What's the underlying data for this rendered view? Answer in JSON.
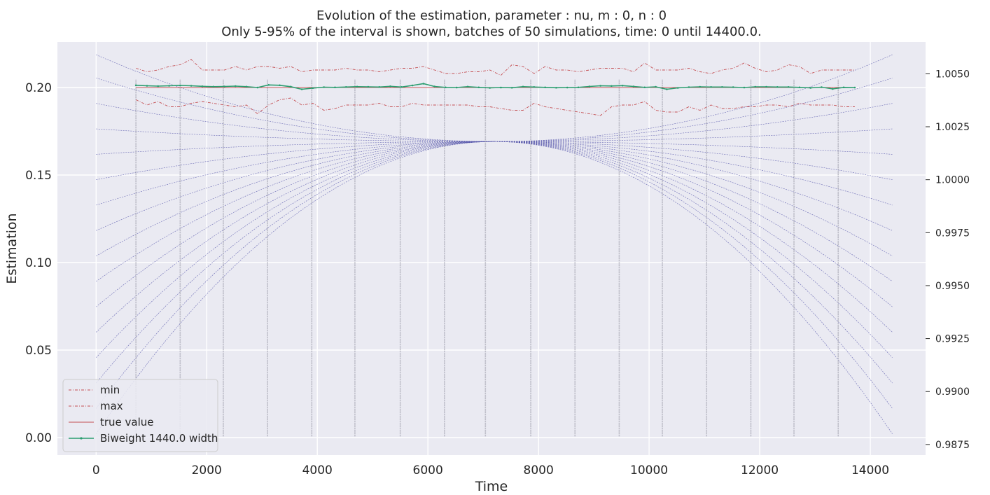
{
  "chart_data": {
    "type": "line",
    "title": "Evolution of the estimation, parameter : nu, m : 0, n : 0",
    "subtitle": "Only 5-95% of the interval is shown, batches of 50 simulations, time: 0 until 14400.0.",
    "xlabel": "Time",
    "ylabel": "Estimation",
    "xlim": [
      -700,
      15000
    ],
    "ylim": [
      -0.01,
      0.226
    ],
    "y2lim": [
      0.987,
      1.0065
    ],
    "xticks": [
      0,
      2000,
      4000,
      6000,
      8000,
      10000,
      12000,
      14000
    ],
    "yticks": [
      0.0,
      0.05,
      0.1,
      0.15,
      0.2
    ],
    "ytick_labels": [
      "0.00",
      "0.05",
      "0.10",
      "0.15",
      "0.20"
    ],
    "y2ticks": [
      0.9875,
      0.99,
      0.9925,
      0.995,
      0.9975,
      1.0,
      1.0025,
      1.005
    ],
    "y2tick_labels": [
      "0.9875",
      "0.9900",
      "0.9925",
      "0.9950",
      "0.9975",
      "1.0000",
      "1.0025",
      "1.0050"
    ],
    "grid": true,
    "legend_position": "lower-left",
    "background": "#eaeaf2",
    "kernel": {
      "center": 7200,
      "center_value": 1.0018,
      "x_range": [
        0,
        14400
      ],
      "left_edge_values": [
        1.0059,
        1.0048,
        1.0036,
        1.0024,
        1.0012,
        1.0,
        0.9988,
        0.9976,
        0.9964,
        0.9952,
        0.994,
        0.9928,
        0.9916,
        0.9904,
        0.9892,
        0.988
      ],
      "color": "#5555aa"
    },
    "vertical_markers": [
      720,
      1520,
      2300,
      3100,
      3900,
      4680,
      5500,
      6300,
      7040,
      7860,
      8660,
      9460,
      10240,
      11040,
      11840,
      12620,
      13420
    ],
    "marker_top": 0.2045,
    "series": [
      {
        "name": "min",
        "color": "#c44e52",
        "dash": "dashdot",
        "x": [
          720,
          920,
          1120,
          1320,
          1520,
          1720,
          1920,
          2120,
          2320,
          2520,
          2720,
          2920,
          3120,
          3320,
          3520,
          3720,
          3920,
          4120,
          4320,
          4520,
          4720,
          4920,
          5120,
          5320,
          5520,
          5720,
          5920,
          6120,
          6320,
          6520,
          6720,
          6920,
          7120,
          7320,
          7520,
          7720,
          7920,
          8120,
          8320,
          8520,
          8720,
          8920,
          9120,
          9320,
          9520,
          9720,
          9920,
          10120,
          10320,
          10520,
          10720,
          10920,
          11120,
          11320,
          11520,
          11720,
          11920,
          12120,
          12320,
          12520,
          12720,
          12920,
          13120,
          13320,
          13520,
          13720
        ],
        "values": [
          0.193,
          0.19,
          0.192,
          0.189,
          0.189,
          0.191,
          0.192,
          0.191,
          0.19,
          0.189,
          0.19,
          0.185,
          0.19,
          0.193,
          0.194,
          0.19,
          0.191,
          0.187,
          0.188,
          0.19,
          0.19,
          0.19,
          0.191,
          0.189,
          0.189,
          0.191,
          0.19,
          0.19,
          0.19,
          0.19,
          0.19,
          0.189,
          0.189,
          0.188,
          0.187,
          0.187,
          0.191,
          0.189,
          0.188,
          0.187,
          0.186,
          0.185,
          0.184,
          0.189,
          0.19,
          0.19,
          0.192,
          0.187,
          0.186,
          0.186,
          0.189,
          0.187,
          0.19,
          0.188,
          0.188,
          0.189,
          0.189,
          0.19,
          0.19,
          0.189,
          0.191,
          0.19,
          0.19,
          0.19,
          0.189,
          0.189
        ]
      },
      {
        "name": "max",
        "color": "#c44e52",
        "dash": "dashdot",
        "x": [
          720,
          920,
          1120,
          1320,
          1520,
          1720,
          1920,
          2120,
          2320,
          2520,
          2720,
          2920,
          3120,
          3320,
          3520,
          3720,
          3920,
          4120,
          4320,
          4520,
          4720,
          4920,
          5120,
          5320,
          5520,
          5720,
          5920,
          6120,
          6320,
          6520,
          6720,
          6920,
          7120,
          7320,
          7520,
          7720,
          7920,
          8120,
          8320,
          8520,
          8720,
          8920,
          9120,
          9320,
          9520,
          9720,
          9920,
          10120,
          10320,
          10520,
          10720,
          10920,
          11120,
          11320,
          11520,
          11720,
          11920,
          12120,
          12320,
          12520,
          12720,
          12920,
          13120,
          13320,
          13520,
          13720
        ],
        "values": [
          0.211,
          0.209,
          0.21,
          0.212,
          0.213,
          0.216,
          0.21,
          0.21,
          0.21,
          0.212,
          0.21,
          0.212,
          0.212,
          0.211,
          0.212,
          0.209,
          0.21,
          0.21,
          0.21,
          0.211,
          0.21,
          0.21,
          0.209,
          0.21,
          0.211,
          0.211,
          0.212,
          0.21,
          0.208,
          0.208,
          0.209,
          0.209,
          0.21,
          0.207,
          0.213,
          0.212,
          0.208,
          0.212,
          0.21,
          0.21,
          0.209,
          0.21,
          0.211,
          0.211,
          0.211,
          0.209,
          0.214,
          0.21,
          0.21,
          0.21,
          0.211,
          0.209,
          0.208,
          0.21,
          0.211,
          0.214,
          0.211,
          0.209,
          0.21,
          0.213,
          0.212,
          0.208,
          0.21,
          0.21,
          0.21,
          0.21
        ]
      },
      {
        "name": "true value",
        "color": "#c44e52",
        "dash": "solid",
        "x": [
          720,
          13720
        ],
        "values": [
          0.2,
          0.2
        ]
      },
      {
        "name": "Biweight 1440.0 width",
        "color": "#2a9d6f",
        "dash": "solid",
        "markers": true,
        "x": [
          720,
          920,
          1120,
          1320,
          1520,
          1720,
          1920,
          2120,
          2320,
          2520,
          2720,
          2920,
          3120,
          3320,
          3520,
          3720,
          3920,
          4120,
          4320,
          4520,
          4720,
          4920,
          5120,
          5320,
          5520,
          5720,
          5920,
          6120,
          6320,
          6520,
          6720,
          6920,
          7120,
          7320,
          7520,
          7720,
          7920,
          8120,
          8320,
          8520,
          8720,
          8920,
          9120,
          9320,
          9520,
          9720,
          9920,
          10120,
          10320,
          10520,
          10720,
          10920,
          11120,
          11320,
          11520,
          11720,
          11920,
          12120,
          12320,
          12520,
          12720,
          12920,
          13120,
          13320,
          13520,
          13720
        ],
        "values": [
          0.2013,
          0.201,
          0.2008,
          0.201,
          0.2012,
          0.201,
          0.2007,
          0.2005,
          0.2006,
          0.2008,
          0.2005,
          0.2,
          0.2015,
          0.2013,
          0.2005,
          0.199,
          0.1997,
          0.2002,
          0.2001,
          0.2003,
          0.2005,
          0.2004,
          0.2003,
          0.2007,
          0.2003,
          0.2012,
          0.2022,
          0.2006,
          0.2001,
          0.2,
          0.2005,
          0.2001,
          0.1998,
          0.2,
          0.1999,
          0.2005,
          0.2003,
          0.2001,
          0.1999,
          0.2,
          0.2001,
          0.2006,
          0.201,
          0.2009,
          0.2011,
          0.2006,
          0.2001,
          0.2004,
          0.199,
          0.1998,
          0.2002,
          0.2004,
          0.2003,
          0.2003,
          0.2002,
          0.2,
          0.2004,
          0.2004,
          0.2003,
          0.2003,
          0.2001,
          0.1998,
          0.2002,
          0.1992,
          0.2001,
          0.2
        ]
      }
    ]
  }
}
